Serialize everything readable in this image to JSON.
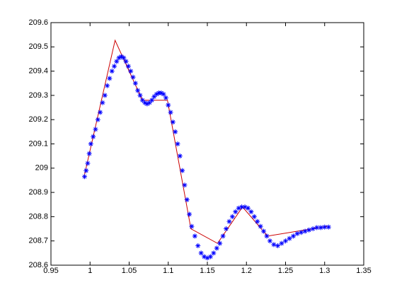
{
  "chart_data": {
    "type": "scatter",
    "xlim": [
      0.95,
      1.35
    ],
    "xticks": [
      0.95,
      1,
      1.05,
      1.1,
      1.15,
      1.2,
      1.25,
      1.3,
      1.35
    ],
    "ylim": [
      208.6,
      209.6
    ],
    "yticks": [
      208.6,
      208.7,
      208.8,
      208.9,
      209,
      209.1,
      209.2,
      209.3,
      209.4,
      209.5,
      209.6
    ],
    "series": [
      {
        "color": "#cc0000",
        "style": "line",
        "x": [
          0.992,
          1.032,
          1.067,
          1.099,
          1.129,
          1.163,
          1.195,
          1.227,
          1.303
        ],
        "values": [
          208.96,
          209.527,
          209.28,
          209.28,
          208.75,
          208.69,
          208.84,
          208.72,
          208.76
        ]
      },
      {
        "color": "#0000ff",
        "style": "marker",
        "x": [
          0.993,
          0.995,
          0.997,
          0.999,
          1.001,
          1.004,
          1.007,
          1.01,
          1.013,
          1.016,
          1.019,
          1.022,
          1.025,
          1.028,
          1.031,
          1.034,
          1.037,
          1.04,
          1.043,
          1.046,
          1.049,
          1.052,
          1.055,
          1.058,
          1.061,
          1.064,
          1.067,
          1.07,
          1.073,
          1.076,
          1.079,
          1.082,
          1.085,
          1.088,
          1.091,
          1.094,
          1.097,
          1.1,
          1.103,
          1.106,
          1.109,
          1.112,
          1.115,
          1.118,
          1.121,
          1.124,
          1.127,
          1.13,
          1.134,
          1.138,
          1.142,
          1.146,
          1.15,
          1.154,
          1.158,
          1.162,
          1.166,
          1.17,
          1.174,
          1.178,
          1.182,
          1.186,
          1.19,
          1.194,
          1.198,
          1.202,
          1.206,
          1.21,
          1.214,
          1.218,
          1.222,
          1.226,
          1.23,
          1.235,
          1.24,
          1.245,
          1.25,
          1.255,
          1.26,
          1.265,
          1.27,
          1.275,
          1.28,
          1.285,
          1.29,
          1.295,
          1.3,
          1.305
        ],
        "values": [
          208.965,
          208.99,
          209.02,
          209.06,
          209.1,
          209.13,
          209.16,
          209.2,
          209.23,
          209.27,
          209.3,
          209.34,
          209.37,
          209.4,
          209.42,
          209.44,
          209.455,
          209.46,
          209.455,
          209.44,
          209.42,
          209.4,
          209.375,
          209.35,
          209.32,
          209.3,
          209.28,
          209.27,
          209.265,
          209.27,
          209.28,
          209.295,
          209.305,
          209.31,
          209.31,
          209.305,
          209.29,
          209.26,
          209.23,
          209.19,
          209.15,
          209.1,
          209.05,
          208.99,
          208.93,
          208.87,
          208.81,
          208.76,
          208.72,
          208.68,
          208.65,
          208.635,
          208.63,
          208.635,
          208.65,
          208.67,
          208.69,
          208.72,
          208.75,
          208.78,
          208.8,
          208.82,
          208.835,
          208.84,
          208.84,
          208.835,
          208.82,
          208.8,
          208.78,
          208.76,
          208.74,
          208.72,
          208.7,
          208.685,
          208.68,
          208.69,
          208.7,
          208.71,
          208.72,
          208.73,
          208.735,
          208.74,
          208.745,
          208.75,
          208.755,
          208.755,
          208.757,
          208.757
        ]
      }
    ]
  }
}
